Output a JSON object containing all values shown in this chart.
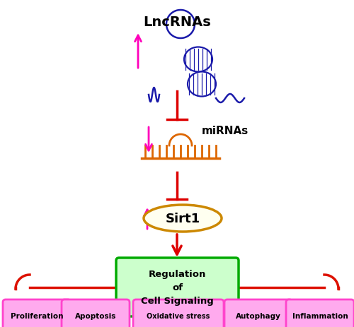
{
  "background_color": "#ffffff",
  "title": "LncRNAs",
  "mirna_label": "miRNAs",
  "sirt1_label": "Sirt1",
  "reg_label": "Regulation\nof\nCell Signaling",
  "bottom_labels": [
    "Proliferation",
    "Apoptosis",
    "Oxidative stress",
    "Autophagy",
    "Inflammation"
  ],
  "arrow_color_red": "#dd0000",
  "arrow_color_magenta": "#ff00bb",
  "lncrna_color": "#1a1aaa",
  "mirna_color": "#dd6600",
  "sirt1_ellipse_color": "#cc8800",
  "sirt1_fill_color": "#fffff0",
  "reg_box_color": "#00aa00",
  "reg_fill_color": "#ccffcc",
  "bottom_box_color": "#ff44cc",
  "bottom_fill_color": "#ffaaee",
  "curly_color": "#dd1100"
}
